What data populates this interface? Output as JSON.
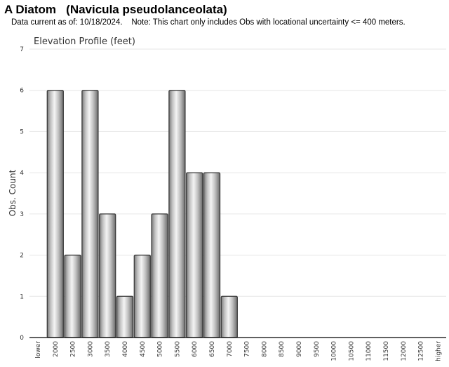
{
  "title": "A Diatom   (Navicula pseudolanceolata)",
  "subtitle": "Data current as of: 10/18/2024.    Note: This chart only includes Obs with locational uncertainty <= 400 meters.",
  "chart_data": {
    "type": "bar",
    "title": "Elevation Profile (feet)",
    "xlabel": "",
    "ylabel": "Obs. Count",
    "ylim": [
      0,
      7
    ],
    "yticks": [
      "0",
      "1",
      "2",
      "3",
      "4",
      "5",
      "6",
      "7"
    ],
    "grid": true,
    "categories": [
      "lower",
      "2000",
      "2500",
      "3000",
      "3500",
      "4000",
      "4500",
      "5000",
      "5500",
      "6000",
      "6500",
      "7000",
      "7500",
      "8000",
      "8500",
      "9000",
      "9500",
      "10000",
      "10500",
      "11000",
      "11500",
      "12000",
      "12500",
      "higher"
    ],
    "values": [
      0,
      6,
      2,
      6,
      3,
      1,
      2,
      3,
      6,
      4,
      4,
      1,
      0,
      0,
      0,
      0,
      0,
      0,
      0,
      0,
      0,
      0,
      0,
      0
    ]
  }
}
